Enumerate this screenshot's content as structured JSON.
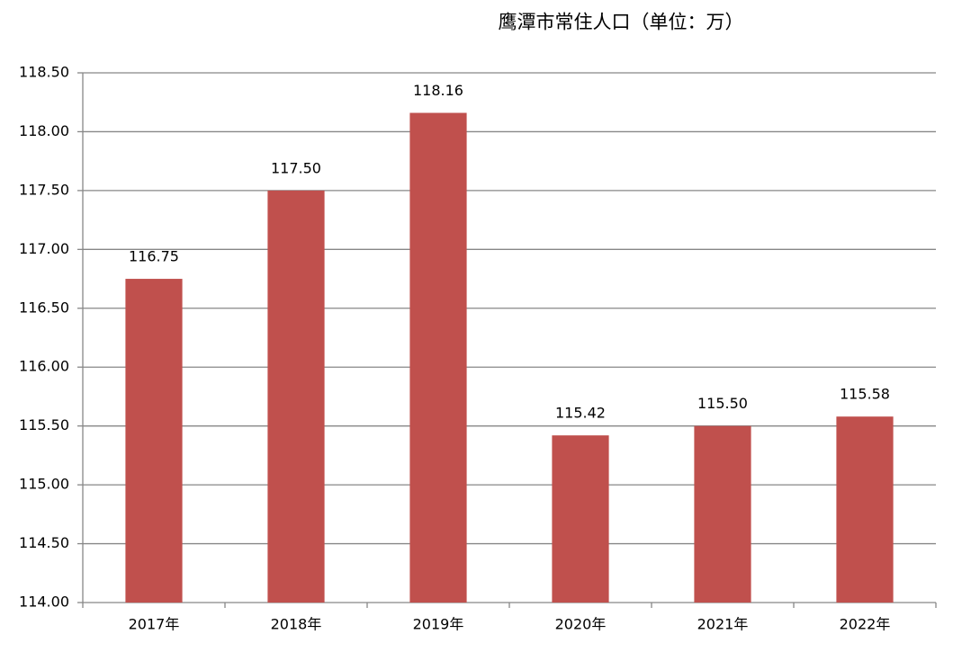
{
  "chart_data": {
    "type": "bar",
    "title": "鹰潭市常住人口（单位：万）",
    "categories": [
      "2017年",
      "2018年",
      "2019年",
      "2020年",
      "2021年",
      "2022年"
    ],
    "values": [
      116.75,
      117.5,
      118.16,
      115.42,
      115.5,
      115.58
    ],
    "value_labels": [
      "116.75",
      "117.50",
      "118.16",
      "115.42",
      "115.50",
      "115.58"
    ],
    "color": "#c0504d",
    "ylim": [
      114,
      118.5
    ],
    "yticks": [
      {
        "value": 114,
        "label": "114.00"
      },
      {
        "value": 114.5,
        "label": "114.50"
      },
      {
        "value": 115,
        "label": "115.00"
      },
      {
        "value": 115.5,
        "label": "115.50"
      },
      {
        "value": 116,
        "label": "116.00"
      },
      {
        "value": 116.5,
        "label": "116.50"
      },
      {
        "value": 117,
        "label": "117.00"
      },
      {
        "value": 117.5,
        "label": "117.50"
      },
      {
        "value": 118,
        "label": "118.00"
      },
      {
        "value": 118.5,
        "label": "118.50"
      }
    ],
    "grid": true
  }
}
